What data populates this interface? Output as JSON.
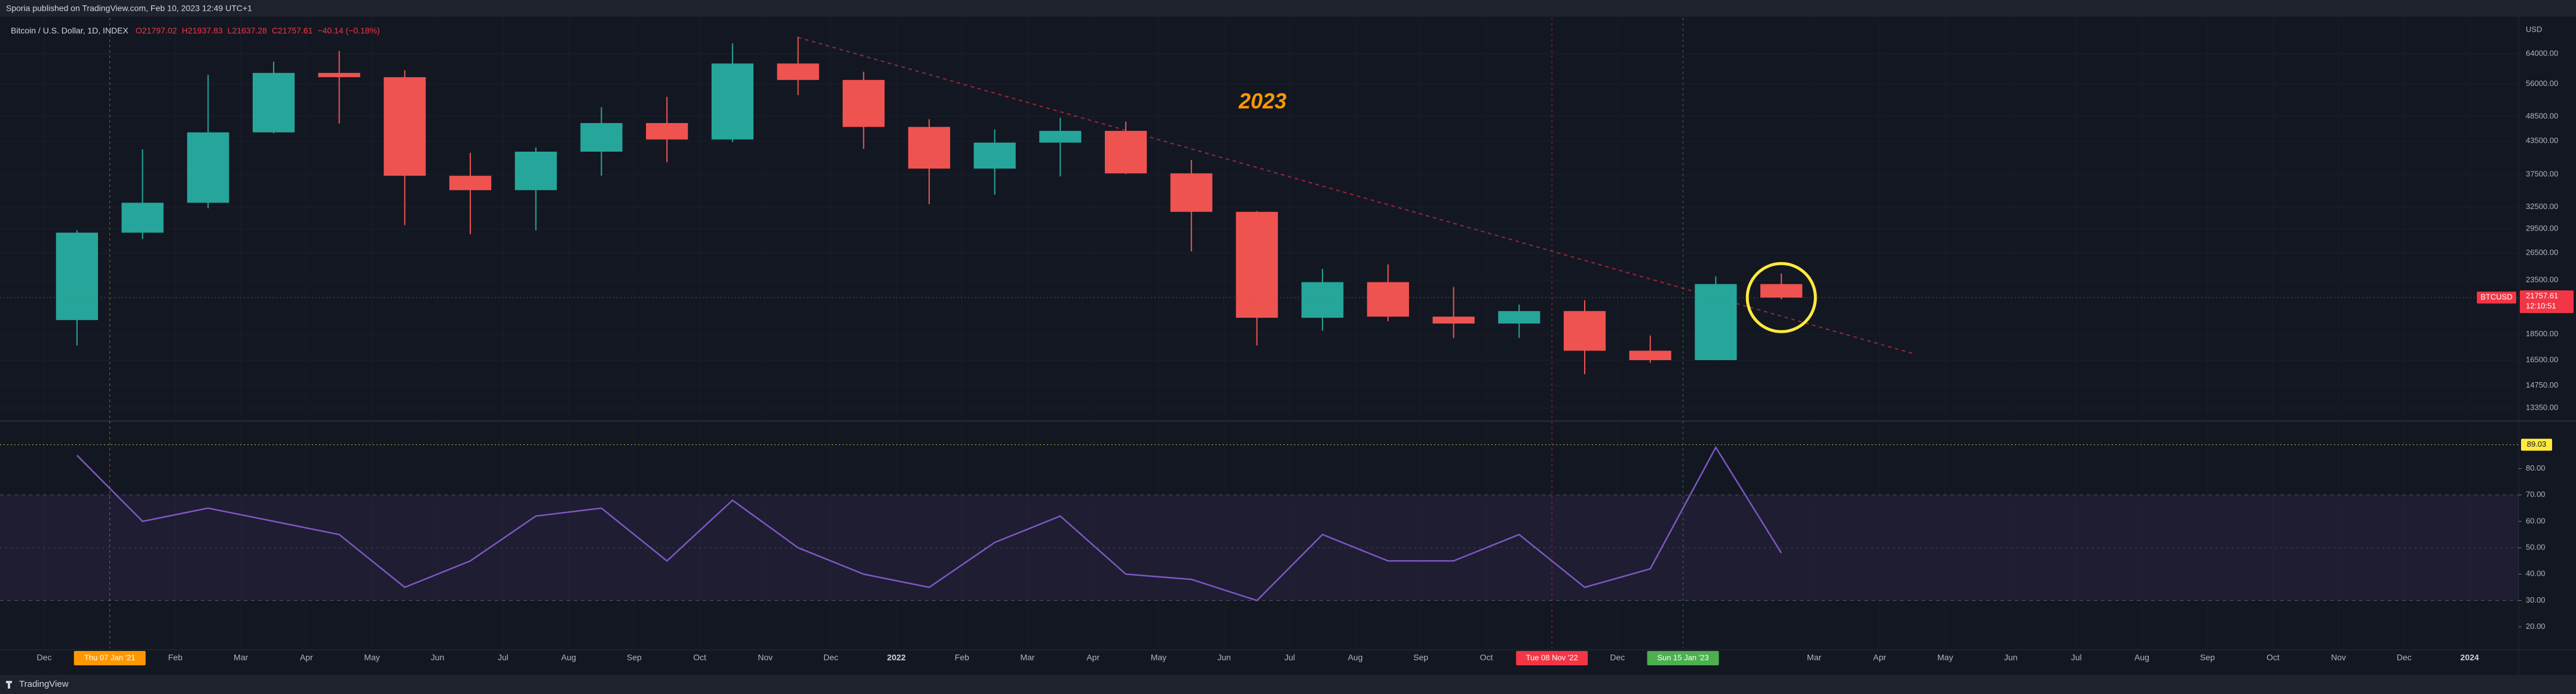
{
  "header": "Sporia published on TradingView.com, Feb 10, 2023 12:49 UTC+1",
  "footer": "TradingView",
  "chart_data": [
    {
      "type": "candlestick",
      "title": "Bitcoin / U.S. Dollar, 1D, INDEX",
      "ohlc_labels": [
        "O21797.02",
        "H21937.83",
        "L21637.28",
        "C21757.61",
        "−40.14 (−0.18%)"
      ],
      "annotation": "2023",
      "axis_unit": "USD",
      "x": [
        "2020-12",
        "2021-01",
        "2021-02",
        "2021-03",
        "2021-04",
        "2021-05",
        "2021-06",
        "2021-07",
        "2021-08",
        "2021-09",
        "2021-10",
        "2021-11",
        "2021-12",
        "2022-01",
        "2022-02",
        "2022-03",
        "2022-04",
        "2022-05",
        "2022-06",
        "2022-07",
        "2022-08",
        "2022-09",
        "2022-10",
        "2022-11",
        "2022-12",
        "2023-01",
        "2023-02"
      ],
      "open": [
        19700,
        29000,
        33100,
        45200,
        58800,
        57700,
        37300,
        35000,
        41500,
        47100,
        43800,
        61300,
        57000,
        46300,
        38500,
        43200,
        45500,
        37700,
        31800,
        19900,
        23300,
        20000,
        19400,
        20500,
        17200,
        16500,
        23100
      ],
      "high": [
        29300,
        41900,
        58300,
        61800,
        64800,
        59500,
        41300,
        42300,
        50500,
        52900,
        67000,
        69000,
        59100,
        47900,
        45800,
        48200,
        47400,
        40000,
        31900,
        24700,
        25200,
        22800,
        21100,
        21500,
        18400,
        23900,
        24200
      ],
      "low": [
        17600,
        28200,
        32300,
        45000,
        47000,
        30000,
        28800,
        29300,
        37300,
        39600,
        43300,
        53300,
        42000,
        32900,
        34300,
        37200,
        37600,
        26700,
        17600,
        18800,
        19600,
        18200,
        18200,
        15500,
        16300,
        16500,
        21600
      ],
      "close": [
        29000,
        33100,
        45200,
        58800,
        57700,
        37300,
        35000,
        41500,
        47100,
        43800,
        61300,
        57000,
        46300,
        38500,
        43200,
        45500,
        37700,
        31800,
        19900,
        23300,
        20000,
        19400,
        20500,
        17200,
        16500,
        23100,
        21757.61
      ],
      "up_color": "#26a69a",
      "down_color": "#ef5350",
      "log_scale": true,
      "xlim": [
        "2020-12",
        "2024-01"
      ],
      "xticks": [
        {
          "value": "2020-12",
          "label": "Dec"
        },
        {
          "value": "2021-02",
          "label": "Feb"
        },
        {
          "value": "2021-03",
          "label": "Mar"
        },
        {
          "value": "2021-04",
          "label": "Apr"
        },
        {
          "value": "2021-05",
          "label": "May"
        },
        {
          "value": "2021-06",
          "label": "Jun"
        },
        {
          "value": "2021-07",
          "label": "Jul"
        },
        {
          "value": "2021-08",
          "label": "Aug"
        },
        {
          "value": "2021-09",
          "label": "Sep"
        },
        {
          "value": "2021-10",
          "label": "Oct"
        },
        {
          "value": "2021-11",
          "label": "Nov"
        },
        {
          "value": "2021-12",
          "label": "Dec"
        },
        {
          "value": "2022-01",
          "label": "2022"
        },
        {
          "value": "2022-02",
          "label": "Feb"
        },
        {
          "value": "2022-03",
          "label": "Mar"
        },
        {
          "value": "2022-04",
          "label": "Apr"
        },
        {
          "value": "2022-05",
          "label": "May"
        },
        {
          "value": "2022-06",
          "label": "Jun"
        },
        {
          "value": "2022-07",
          "label": "Jul"
        },
        {
          "value": "2022-08",
          "label": "Aug"
        },
        {
          "value": "2022-09",
          "label": "Sep"
        },
        {
          "value": "2022-10",
          "label": "Oct"
        },
        {
          "value": "2022-12",
          "label": "Dec"
        },
        {
          "value": "2023-03",
          "label": "Mar"
        },
        {
          "value": "2023-04",
          "label": "Apr"
        },
        {
          "value": "2023-05",
          "label": "May"
        },
        {
          "value": "2023-06",
          "label": "Jun"
        },
        {
          "value": "2023-07",
          "label": "Jul"
        },
        {
          "value": "2023-08",
          "label": "Aug"
        },
        {
          "value": "2023-09",
          "label": "Sep"
        },
        {
          "value": "2023-10",
          "label": "Oct"
        },
        {
          "value": "2023-11",
          "label": "Nov"
        },
        {
          "value": "2023-12",
          "label": "Dec"
        },
        {
          "value": "2024-01",
          "label": "2024"
        }
      ],
      "x_highlights": [
        {
          "x": "2021-01",
          "label": "Thu 07 Jan '21",
          "color": "#ff9800"
        },
        {
          "x": "2022-11",
          "label": "Tue 08 Nov '22",
          "color": "#f23645"
        },
        {
          "x": "2023-01",
          "label": "Sun 15 Jan '23",
          "color": "#4caf50"
        }
      ],
      "ylim": [
        12600,
        75000
      ],
      "yticks": [
        {
          "value": 64000,
          "label": "64000.00"
        },
        {
          "value": 56000,
          "label": "56000.00"
        },
        {
          "value": 48500,
          "label": "48500.00"
        },
        {
          "value": 43500,
          "label": "43500.00"
        },
        {
          "value": 37500,
          "label": "37500.00"
        },
        {
          "value": 32500,
          "label": "32500.00"
        },
        {
          "value": 29500,
          "label": "29500.00"
        },
        {
          "value": 26500,
          "label": "26500.00"
        },
        {
          "value": 23500,
          "label": "23500.00"
        },
        {
          "value": 18500,
          "label": "18500.00"
        },
        {
          "value": 16500,
          "label": "16500.00"
        },
        {
          "value": 14750,
          "label": "14750.00"
        },
        {
          "value": 13350,
          "label": "13350.00"
        }
      ],
      "trendline": {
        "x": [
          "2021-11",
          "2023-04"
        ],
        "values": [
          68800,
          17000
        ],
        "color": "#f23645"
      },
      "last_price": {
        "symbol": "BTCUSD",
        "value": 21757.61,
        "countdown": "12:10:51",
        "color": "#f23645"
      }
    },
    {
      "type": "line",
      "x": [
        "2020-12",
        "2021-01",
        "2021-02",
        "2021-03",
        "2021-04",
        "2021-05",
        "2021-06",
        "2021-07",
        "2021-08",
        "2021-09",
        "2021-10",
        "2021-11",
        "2021-12",
        "2022-01",
        "2022-02",
        "2022-03",
        "2022-04",
        "2022-05",
        "2022-06",
        "2022-07",
        "2022-08",
        "2022-09",
        "2022-10",
        "2022-11",
        "2022-12",
        "2023-01",
        "2023-02"
      ],
      "values": [
        85,
        60,
        65,
        60,
        55,
        35,
        45,
        62,
        65,
        45,
        68,
        50,
        40,
        35,
        52,
        62,
        40,
        38,
        30,
        55,
        45,
        45,
        55,
        35,
        42,
        88,
        48
      ],
      "color": "#7e57c2",
      "band": [
        30,
        70
      ],
      "midline": 50,
      "level": 89.03,
      "level_color": "#ffeb3b",
      "ylim": [
        12,
        98
      ],
      "yticks": [
        {
          "value": 80,
          "label": "80.00"
        },
        {
          "value": 70,
          "label": "70.00"
        },
        {
          "value": 60,
          "label": "60.00"
        },
        {
          "value": 50,
          "label": "50.00"
        },
        {
          "value": 40,
          "label": "40.00"
        },
        {
          "value": 30,
          "label": "30.00"
        },
        {
          "value": 20,
          "label": "20.00"
        }
      ]
    }
  ]
}
